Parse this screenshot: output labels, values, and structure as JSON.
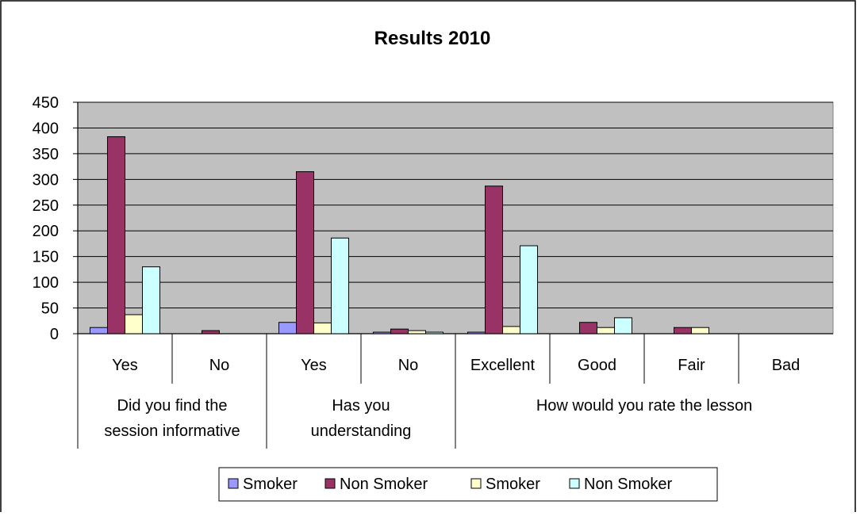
{
  "chart_data": {
    "type": "bar",
    "title": "Results 2010",
    "xlabel": "",
    "ylabel": "",
    "ylim": [
      0,
      450
    ],
    "yticks": [
      0,
      50,
      100,
      150,
      200,
      250,
      300,
      350,
      400,
      450
    ],
    "grid": true,
    "legend_position": "bottom",
    "plot_background": "#c0c0c0",
    "groups": [
      {
        "label": "Did you find the session informative",
        "lines": [
          "Did you find the",
          "session informative"
        ],
        "categories": [
          0,
          1
        ]
      },
      {
        "label": "Has you understanding",
        "lines": [
          "Has you",
          "understanding"
        ],
        "categories": [
          2,
          3
        ]
      },
      {
        "label": "How would you rate the lesson",
        "lines": [
          "How would you rate the lesson"
        ],
        "categories": [
          4,
          5,
          6,
          7
        ]
      }
    ],
    "categories": [
      "Yes",
      "No",
      "Yes",
      "No",
      "Excellent",
      "Good",
      "Fair",
      "Bad"
    ],
    "series": [
      {
        "name": "Smoker",
        "color": "#9999ff",
        "values": [
          12,
          0,
          22,
          3,
          3,
          0,
          0,
          0
        ]
      },
      {
        "name": "Non Smoker",
        "color": "#993366",
        "values": [
          383,
          6,
          315,
          9,
          287,
          22,
          12,
          0
        ]
      },
      {
        "name": "Smoker",
        "color": "#ffffcc",
        "values": [
          37,
          0,
          21,
          6,
          14,
          12,
          12,
          0
        ]
      },
      {
        "name": "Non Smoker",
        "color": "#ccffff",
        "values": [
          130,
          0,
          186,
          3,
          171,
          31,
          0,
          0
        ]
      }
    ]
  }
}
